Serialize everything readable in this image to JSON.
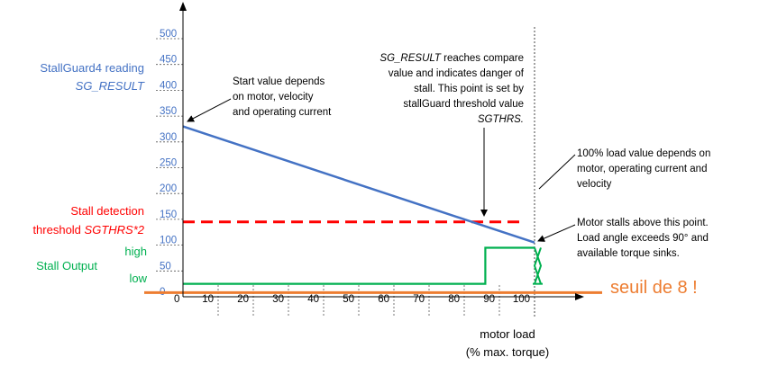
{
  "chart_data": {
    "type": "line",
    "xlabel": [
      "motor load",
      "(% max. torque)"
    ],
    "x_ticks": [
      0,
      10,
      20,
      30,
      40,
      50,
      60,
      70,
      80,
      90,
      100
    ],
    "xlim": [
      0,
      100
    ],
    "y_ticks": [
      0,
      50,
      100,
      150,
      200,
      250,
      300,
      350,
      400,
      450,
      500
    ],
    "ylim": [
      0,
      500
    ],
    "y_grid": "dashed",
    "series": [
      {
        "role": "sg_result",
        "color": "#4472c4",
        "label": "StallGuard4 reading",
        "label_italic": "SG_RESULT",
        "points": [
          [
            0,
            330
          ],
          [
            100,
            105
          ]
        ]
      },
      {
        "role": "threshold",
        "color": "#ff0000",
        "style": "dashed",
        "label": "Stall detection",
        "label_prefix": "threshold ",
        "label_italic": "SGTHRS*2",
        "points": [
          [
            0,
            145
          ],
          [
            97,
            145
          ]
        ]
      },
      {
        "role": "stall_output",
        "color": "#00b050",
        "label": "Stall Output",
        "levels": {
          "high": "high",
          "low": "low"
        },
        "low_value": 25,
        "high_value": 95,
        "switch_x": 86,
        "end_x": 100
      },
      {
        "role": "seuil",
        "color": "#ed7d31",
        "value": 8,
        "label": "seuil de 8 !"
      }
    ],
    "vertical_marker_x": 100,
    "annotations": {
      "start": [
        "Start value depends",
        "on motor, velocity",
        "and operating current"
      ],
      "reach": {
        "line1_italic": "SG_RESULT",
        "line1_rest": " reaches compare",
        "line2": "value and indicates danger of",
        "line3": "stall. This point is set by",
        "line4": "stallGuard threshold value",
        "line5_italic": "SGTHRS."
      },
      "load100": [
        "100% load value depends on",
        "motor, operating current and",
        "velocity"
      ],
      "stall": [
        "Motor stalls above this point.",
        "Load angle exceeds 90° and",
        "available torque sinks."
      ]
    }
  }
}
